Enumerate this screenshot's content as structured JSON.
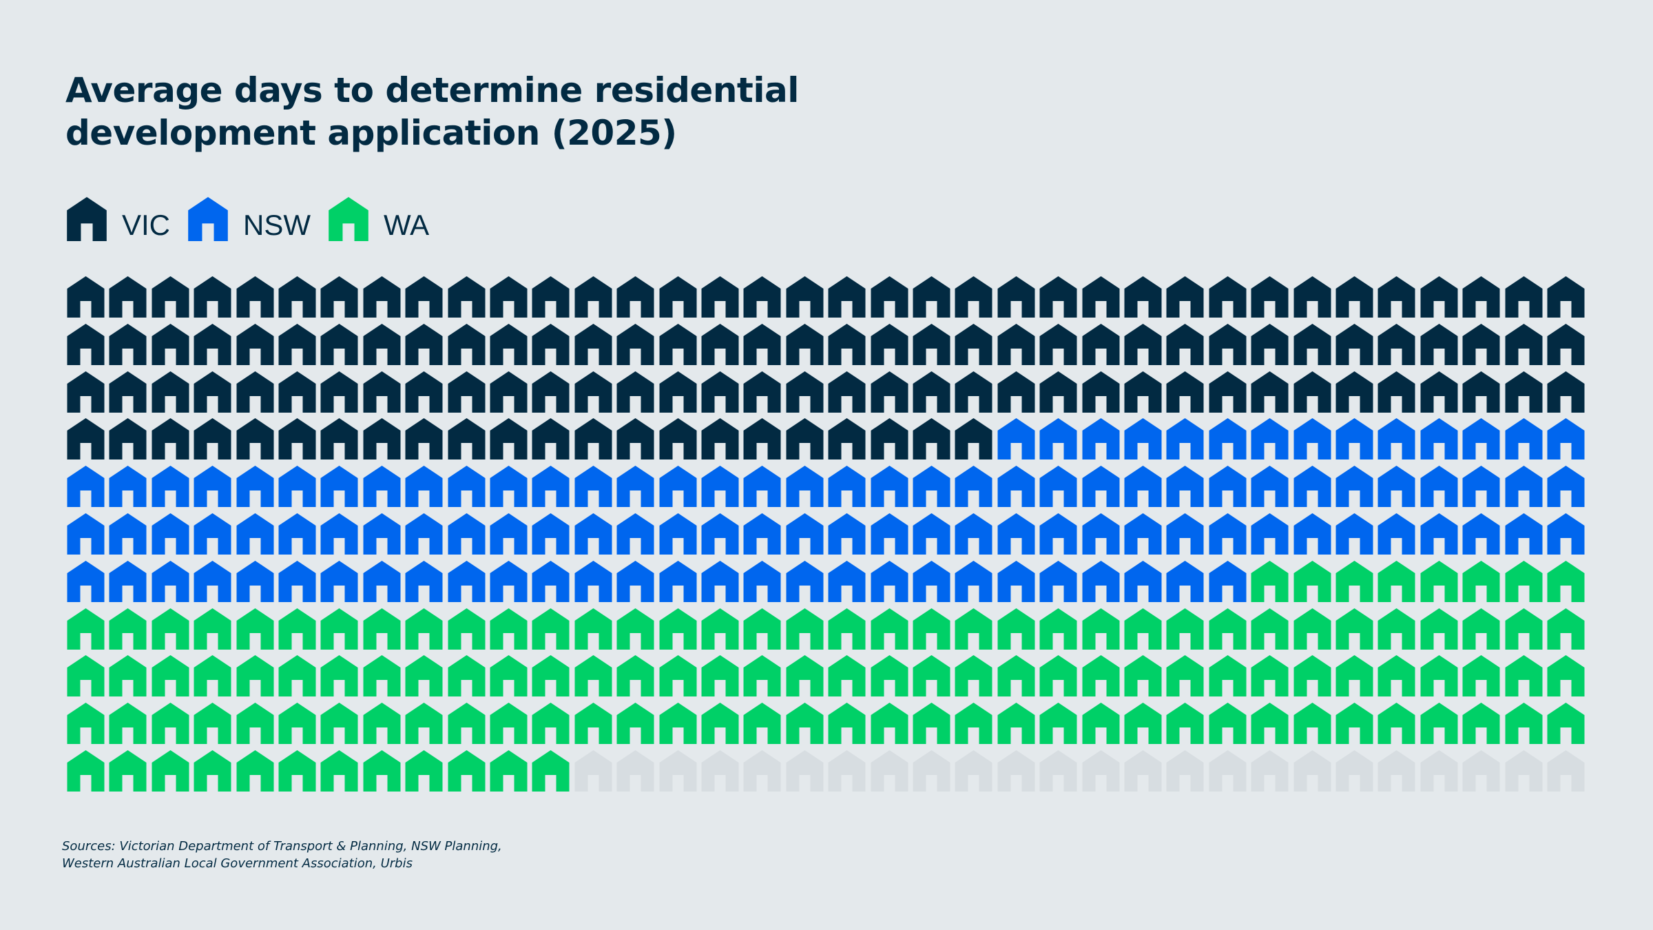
{
  "chart_data": {
    "type": "waffle",
    "title_line1": "Average days to determine residential",
    "title_line2": "development application (2025)",
    "unit": "1 house icon = 1 day",
    "columns": 36,
    "rows": 11,
    "series": [
      {
        "name": "VIC",
        "value": 130,
        "color": "#022a42"
      },
      {
        "name": "NSW",
        "value": 114,
        "color": "#0066ee"
      },
      {
        "name": "WA",
        "value": 128,
        "color": "#00d067"
      }
    ],
    "empty_color": "#d7dde1",
    "legend_position": "top-left",
    "sources_line1": "Sources: Victorian Department of Transport & Planning, NSW Planning,",
    "sources_line2": "Western Australian Local Government Association, Urbis"
  }
}
